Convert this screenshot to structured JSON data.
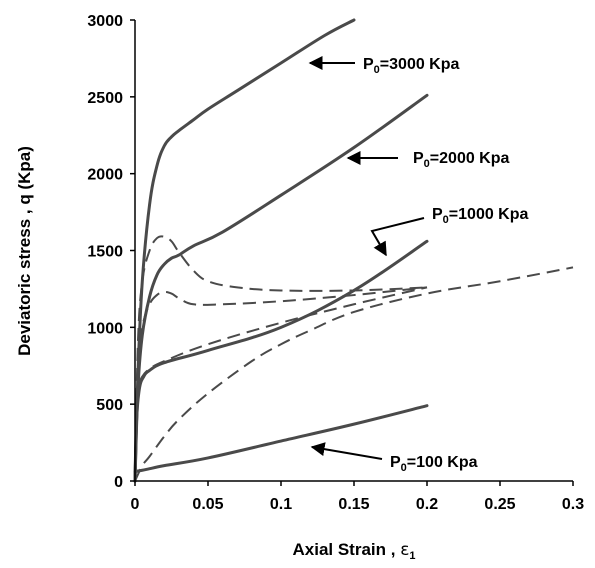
{
  "chart_data": {
    "type": "line",
    "xlabel": "Axial Strain , ε1",
    "xlabel_main": "Axial Strain , ",
    "xlabel_symbol": "ε",
    "xlabel_sub": "1",
    "ylabel": "Deviatoric stress , q (Kpa)",
    "xlim": [
      0,
      0.3
    ],
    "ylim": [
      0,
      3000
    ],
    "x_ticks": [
      "0",
      "0.05",
      "0.1",
      "0.15",
      "0.2",
      "0.25",
      "0.3"
    ],
    "y_ticks": [
      "0",
      "500",
      "1000",
      "1500",
      "2000",
      "2500",
      "3000"
    ],
    "grid": false,
    "line_color": "#4a4a4a",
    "series": [
      {
        "style": "solid",
        "x": [
          0,
          0.002,
          0.005,
          0.01,
          0.02,
          0.05,
          0.1,
          0.15,
          0.2
        ],
        "y": [
          60,
          65,
          70,
          80,
          100,
          150,
          260,
          370,
          490
        ]
      },
      {
        "style": "dashed",
        "x": [
          0,
          0.005,
          0.01,
          0.02,
          0.03,
          0.05,
          0.08,
          0.1,
          0.12,
          0.15,
          0.2,
          0.25,
          0.3
        ],
        "y": [
          0,
          100,
          160,
          290,
          400,
          570,
          780,
          890,
          980,
          1100,
          1220,
          1300,
          1390
        ]
      },
      {
        "style": "solid",
        "x": [
          0,
          0.001,
          0.003,
          0.006,
          0.01,
          0.02,
          0.05,
          0.1,
          0.15,
          0.2
        ],
        "y": [
          0,
          380,
          600,
          680,
          720,
          770,
          850,
          1000,
          1240,
          1560
        ]
      },
      {
        "style": "dashed",
        "x": [
          0,
          0.001,
          0.003,
          0.005,
          0.01,
          0.02,
          0.05,
          0.1,
          0.15,
          0.2
        ],
        "y": [
          0,
          420,
          620,
          680,
          730,
          780,
          890,
          1030,
          1150,
          1260
        ]
      },
      {
        "style": "dashed",
        "x": [
          0,
          0.002,
          0.005,
          0.01,
          0.015,
          0.02,
          0.025,
          0.03,
          0.04,
          0.06,
          0.1,
          0.15,
          0.2
        ],
        "y": [
          0,
          700,
          1000,
          1150,
          1210,
          1230,
          1220,
          1190,
          1150,
          1150,
          1170,
          1210,
          1260
        ]
      },
      {
        "style": "solid",
        "x": [
          0,
          0.002,
          0.005,
          0.01,
          0.015,
          0.02,
          0.025,
          0.03,
          0.04,
          0.06,
          0.1,
          0.15,
          0.2
        ],
        "y": [
          0,
          600,
          950,
          1200,
          1340,
          1410,
          1450,
          1470,
          1530,
          1620,
          1860,
          2170,
          2510
        ]
      },
      {
        "style": "dashed",
        "x": [
          0,
          0.002,
          0.005,
          0.01,
          0.015,
          0.02,
          0.025,
          0.03,
          0.04,
          0.05,
          0.07,
          0.1,
          0.15,
          0.2
        ],
        "y": [
          0,
          900,
          1300,
          1500,
          1580,
          1590,
          1560,
          1490,
          1370,
          1300,
          1260,
          1240,
          1240,
          1260
        ]
      },
      {
        "style": "solid",
        "x": [
          0,
          0.002,
          0.005,
          0.01,
          0.015,
          0.02,
          0.025,
          0.03,
          0.04,
          0.05,
          0.07,
          0.1,
          0.13,
          0.15
        ],
        "y": [
          0,
          700,
          1300,
          1800,
          2050,
          2180,
          2240,
          2280,
          2350,
          2420,
          2540,
          2720,
          2900,
          3000
        ]
      }
    ],
    "annotations": [
      {
        "label_main": "P",
        "label_sub": "0",
        "label_rest": "=3000 Kpa",
        "label": "P0=3000 Kpa"
      },
      {
        "label_main": "P",
        "label_sub": "0",
        "label_rest": "=2000 Kpa",
        "label": "P0=2000 Kpa"
      },
      {
        "label_main": "P",
        "label_sub": "0",
        "label_rest": "=1000 Kpa",
        "label": "P0=1000 Kpa"
      },
      {
        "label_main": "P",
        "label_sub": "0",
        "label_rest": "=100 Kpa",
        "label": "P0=100 Kpa"
      }
    ]
  }
}
